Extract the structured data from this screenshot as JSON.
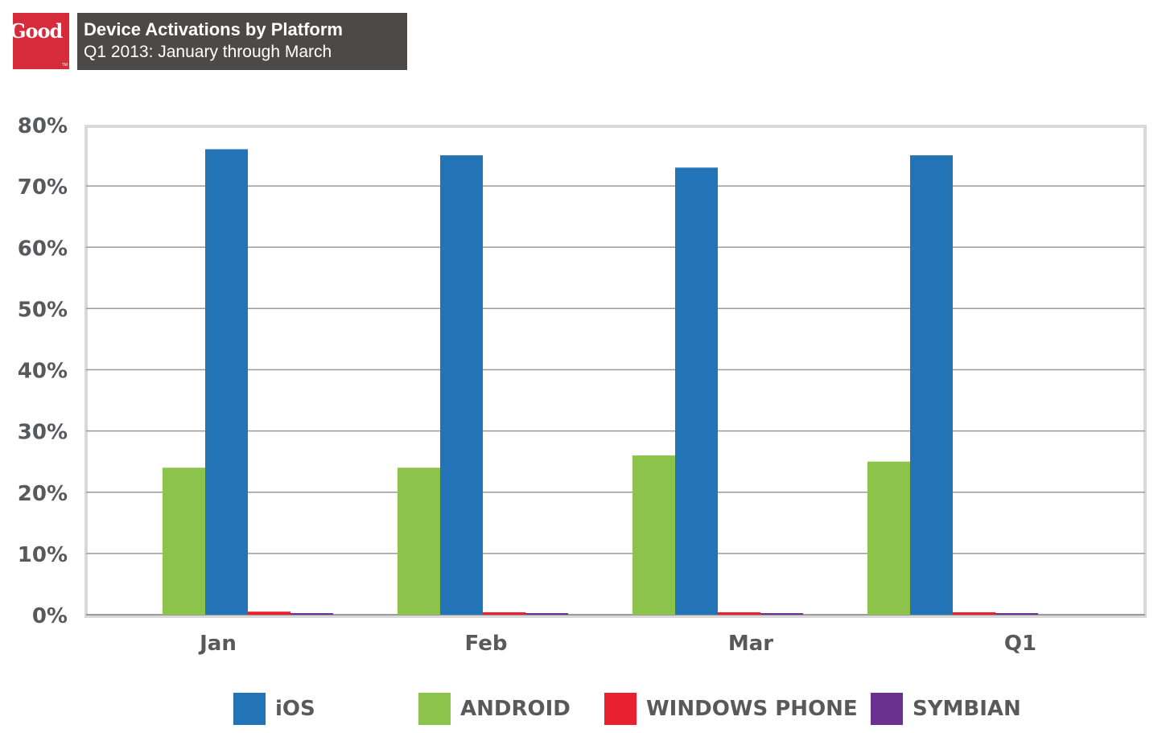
{
  "brand": {
    "logo_text": "Good",
    "logo_tm": "TM",
    "logo_color": "#d52b3a"
  },
  "header": {
    "title": "Device Activations by Platform",
    "subtitle": "Q1 2013: January through March",
    "background_color": "#4c4a48"
  },
  "chart_data": {
    "type": "bar",
    "categories": [
      "Jan",
      "Feb",
      "Mar",
      "Q1"
    ],
    "series": [
      {
        "name": "ANDROID",
        "color": "#8cc34b",
        "values": [
          24,
          24,
          26,
          25
        ]
      },
      {
        "name": "iOS",
        "color": "#2274b7",
        "values": [
          76,
          75,
          73,
          75
        ]
      },
      {
        "name": "WINDOWS PHONE",
        "color": "#e8202f",
        "values": [
          0.5,
          0.4,
          0.4,
          0.4
        ]
      },
      {
        "name": "SYMBIAN",
        "color": "#6b3191",
        "values": [
          0.1,
          0.1,
          0.1,
          0.1
        ]
      }
    ],
    "y_ticks": [
      "0%",
      "10%",
      "20%",
      "30%",
      "40%",
      "50%",
      "60%",
      "70%",
      "80%"
    ],
    "ylim": [
      0,
      80
    ],
    "grid": true,
    "legend_position": "bottom",
    "legend": [
      {
        "label": "iOS",
        "color": "#2274b7"
      },
      {
        "label": "ANDROID",
        "color": "#8cc34b"
      },
      {
        "label": "WINDOWS PHONE",
        "color": "#e8202f"
      },
      {
        "label": "SYMBIAN",
        "color": "#6b3191"
      }
    ]
  }
}
